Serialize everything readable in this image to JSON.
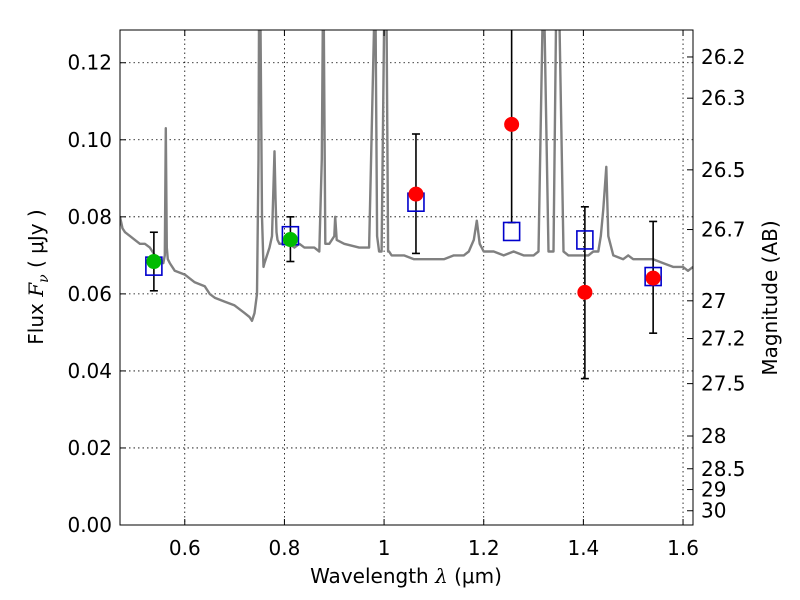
{
  "chart_data": {
    "type": "scatter",
    "xlabel_prefix": "Wavelength  ",
    "xlabel_symbol": "λ",
    "xlabel_unit": " (μm)",
    "ylabel_prefix": "Flux  ",
    "ylabel_symbol": "F",
    "ylabel_sub": "ν",
    "ylabel_unit": "  ( μJy )",
    "y2label": "Magnitude (AB)",
    "xlim": [
      0.47,
      1.62
    ],
    "ylim": [
      0.0,
      0.1285
    ],
    "x_ticks": [
      0.6,
      0.8,
      1.0,
      1.2,
      1.4,
      1.6
    ],
    "x_tick_labels": [
      "0.6",
      "0.8",
      "1",
      "1.2",
      "1.4",
      "1.6"
    ],
    "y_ticks": [
      0.0,
      0.02,
      0.04,
      0.06,
      0.08,
      0.1,
      0.12
    ],
    "y_tick_labels": [
      "0.00",
      "0.02",
      "0.04",
      "0.06",
      "0.08",
      "0.10",
      "0.12"
    ],
    "y2_ticks": [
      {
        "label": "26.2",
        "flux": 0.1215
      },
      {
        "label": "26.3",
        "flux": 0.1108
      },
      {
        "label": "26.5",
        "flux": 0.0922
      },
      {
        "label": "26.7",
        "flux": 0.0767
      },
      {
        "label": "27",
        "flux": 0.0582
      },
      {
        "label": "27.2",
        "flux": 0.0484
      },
      {
        "label": "27.5",
        "flux": 0.0367
      },
      {
        "label": "28",
        "flux": 0.0231
      },
      {
        "label": "28.5",
        "flux": 0.0146
      },
      {
        "label": "29",
        "flux": 0.0092
      },
      {
        "label": "30",
        "flux": 0.0037
      }
    ],
    "grid": true,
    "colors": {
      "model": "#808080",
      "model_points": "#0000cc",
      "detections": "#ff0000",
      "other_points": "#00bb00",
      "errorbars": "#000000"
    },
    "series": [
      {
        "name": "model-spectrum",
        "type": "line",
        "x": [
          0.47,
          0.475,
          0.48,
          0.49,
          0.5,
          0.51,
          0.52,
          0.53,
          0.54,
          0.55,
          0.557,
          0.56,
          0.562,
          0.564,
          0.566,
          0.57,
          0.58,
          0.6,
          0.62,
          0.64,
          0.65,
          0.66,
          0.68,
          0.7,
          0.72,
          0.73,
          0.735,
          0.74,
          0.745,
          0.748,
          0.749,
          0.752,
          0.755,
          0.758,
          0.76,
          0.765,
          0.77,
          0.775,
          0.78,
          0.782,
          0.784,
          0.786,
          0.79,
          0.8,
          0.81,
          0.82,
          0.83,
          0.84,
          0.85,
          0.86,
          0.87,
          0.875,
          0.877,
          0.879,
          0.882,
          0.89,
          0.9,
          0.902,
          0.905,
          0.92,
          0.95,
          0.97,
          0.98,
          0.983,
          0.986,
          0.99,
          0.995,
          1.0,
          1.005,
          1.008,
          1.01,
          1.015,
          1.02,
          1.04,
          1.06,
          1.08,
          1.1,
          1.12,
          1.14,
          1.16,
          1.17,
          1.18,
          1.186,
          1.192,
          1.2,
          1.22,
          1.24,
          1.26,
          1.28,
          1.3,
          1.31,
          1.318,
          1.322,
          1.33,
          1.34,
          1.345,
          1.352,
          1.36,
          1.37,
          1.38,
          1.39,
          1.4,
          1.41,
          1.42,
          1.43,
          1.435,
          1.44,
          1.446,
          1.45,
          1.46,
          1.48,
          1.49,
          1.5,
          1.52,
          1.54,
          1.56,
          1.58,
          1.6,
          1.61,
          1.62
        ],
        "y": [
          0.08,
          0.077,
          0.076,
          0.075,
          0.074,
          0.073,
          0.073,
          0.072,
          0.07,
          0.069,
          0.068,
          0.07,
          0.103,
          0.072,
          0.069,
          0.068,
          0.066,
          0.065,
          0.063,
          0.062,
          0.06,
          0.059,
          0.058,
          0.057,
          0.055,
          0.054,
          0.053,
          0.055,
          0.06,
          0.095,
          0.13,
          0.13,
          0.08,
          0.067,
          0.068,
          0.07,
          0.072,
          0.075,
          0.097,
          0.085,
          0.076,
          0.074,
          0.073,
          0.073,
          0.073,
          0.072,
          0.073,
          0.072,
          0.072,
          0.072,
          0.071,
          0.095,
          0.13,
          0.13,
          0.073,
          0.073,
          0.075,
          0.08,
          0.074,
          0.073,
          0.072,
          0.072,
          0.13,
          0.13,
          0.075,
          0.071,
          0.071,
          0.13,
          0.13,
          0.071,
          0.071,
          0.07,
          0.07,
          0.07,
          0.069,
          0.069,
          0.069,
          0.069,
          0.07,
          0.07,
          0.071,
          0.074,
          0.079,
          0.073,
          0.071,
          0.071,
          0.07,
          0.071,
          0.07,
          0.07,
          0.071,
          0.13,
          0.13,
          0.071,
          0.071,
          0.13,
          0.13,
          0.071,
          0.07,
          0.07,
          0.07,
          0.07,
          0.07,
          0.071,
          0.071,
          0.075,
          0.082,
          0.093,
          0.075,
          0.07,
          0.069,
          0.07,
          0.069,
          0.069,
          0.069,
          0.068,
          0.067,
          0.067,
          0.066,
          0.067
        ]
      },
      {
        "name": "model-bandpass",
        "type": "open-square",
        "x": [
          0.538,
          0.812,
          1.064,
          1.256,
          1.403,
          1.54
        ],
        "y": [
          0.0672,
          0.0751,
          0.0838,
          0.0762,
          0.074,
          0.0645
        ]
      },
      {
        "name": "observed-optical",
        "type": "filled-circle",
        "x": [
          0.538,
          0.812
        ],
        "y": [
          0.0684,
          0.0741
        ],
        "yerr_low": [
          0.0608,
          0.0684
        ],
        "yerr_high": [
          0.076,
          0.08
        ]
      },
      {
        "name": "observed-nir",
        "type": "filled-circle",
        "x": [
          1.064,
          1.256,
          1.403,
          1.54
        ],
        "y": [
          0.0859,
          0.104,
          0.0604,
          0.0641
        ],
        "yerr_low": [
          0.0705,
          0.0785,
          0.038,
          0.0498
        ],
        "yerr_high": [
          0.1015,
          0.129,
          0.0826,
          0.0788
        ]
      }
    ]
  }
}
